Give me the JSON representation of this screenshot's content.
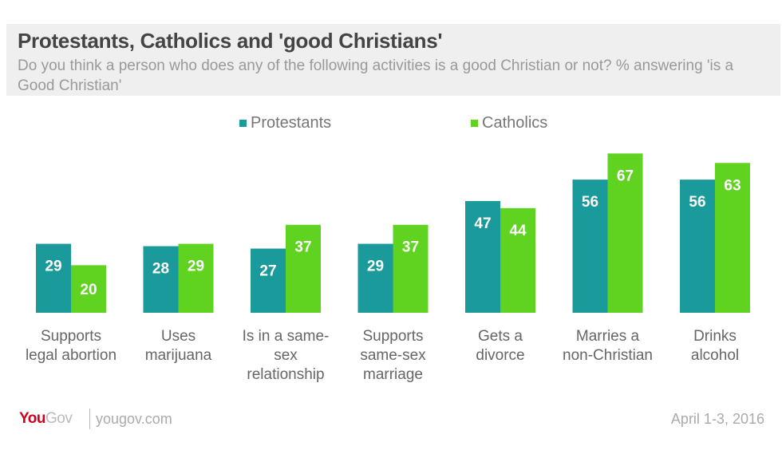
{
  "colors": {
    "protestants": "#1a9a9a",
    "catholics": "#5fd31f"
  },
  "footer": {
    "brand_you": "You",
    "brand_gov": "Gov",
    "url": "yougov.com",
    "date": "April 1-3, 2016"
  },
  "chart_data": {
    "type": "bar",
    "title": "Protestants, Catholics and 'good Christians'",
    "subtitle": "Do you think a person who does any of the following activities is a good Christian or not? % answering 'is a Good Christian'",
    "categories": [
      [
        "Supports",
        "legal abortion"
      ],
      [
        "Uses",
        "marijuana"
      ],
      [
        "Is in a same-",
        "sex",
        "relationship"
      ],
      [
        "Supports",
        "same-sex",
        "marriage"
      ],
      [
        "Gets a",
        "divorce"
      ],
      [
        "Marries a",
        "non-Christian"
      ],
      [
        "Drinks",
        "alcohol"
      ]
    ],
    "series": [
      {
        "name": "Protestants",
        "values": [
          29,
          28,
          27,
          29,
          47,
          56,
          56
        ]
      },
      {
        "name": "Catholics",
        "values": [
          20,
          29,
          37,
          37,
          44,
          67,
          63
        ]
      }
    ],
    "ylim": [
      0,
      70
    ],
    "grid": false,
    "legend_position": "top-center",
    "xlabel": "",
    "ylabel": ""
  }
}
